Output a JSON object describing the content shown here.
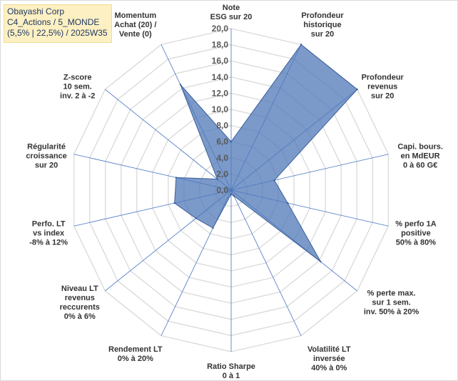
{
  "header": {
    "title_lines": [
      "Obayashi Corp",
      "C4_Actions / 5_MONDE",
      "(5,5% | 22,5%) / 2025W35"
    ]
  },
  "chart_data": {
    "type": "radar",
    "range": [
      0,
      20
    ],
    "tick_labels": [
      "0,0",
      "2,0",
      "4,0",
      "6,0",
      "8,0",
      "10,0",
      "12,0",
      "14,0",
      "16,0",
      "18,0",
      "20,0"
    ],
    "axes": [
      [
        "Note",
        "ESG sur 20"
      ],
      [
        "Profondeur",
        "historique",
        "sur 20"
      ],
      [
        "Profondeur",
        "revenus",
        "sur 20"
      ],
      [
        "Capi. bours.",
        "en MdEUR",
        "0 à 60 G€"
      ],
      [
        "% perfo 1A",
        "positive",
        "50% à 80%"
      ],
      [
        "% perte max.",
        "sur 1 sem.",
        "inv. 50% à 20%"
      ],
      [
        "Volatilité LT",
        "inversée",
        "40% à 0%"
      ],
      [
        "Ratio Sharpe",
        "0 à 1"
      ],
      [
        "Rendement LT",
        "0% à 20%"
      ],
      [
        "Niveau LT",
        "revenus",
        "reccurents",
        "0% à 6%"
      ],
      [
        "Perfo. LT",
        "vs index",
        "-8% à 12%"
      ],
      [
        "Régularité",
        "croissance",
        "sur 20"
      ],
      [
        "Z-score",
        "10 sem.",
        "inv. 2 à -2"
      ],
      [
        "Momentum",
        "Achat (20) /",
        "Vente (0)"
      ]
    ],
    "values": [
      6,
      20,
      20,
      5.5,
      7.2,
      14.2,
      0.8,
      0.5,
      5.2,
      5.6,
      7.2,
      7.0,
      2.2,
      14.5
    ],
    "colors": {
      "fill": "#4f78b8",
      "fill_opacity": 0.75,
      "stroke": "#3a5f9a",
      "grid": "#d9d9d9",
      "spoke": "#4472c4"
    }
  }
}
